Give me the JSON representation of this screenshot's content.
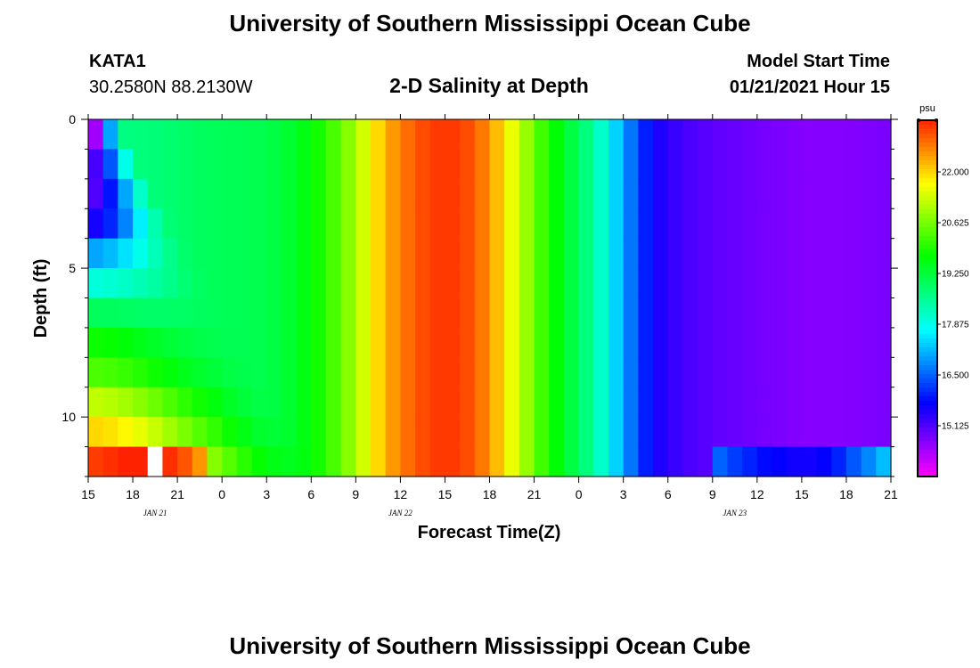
{
  "header": {
    "title": "University of Southern Mississippi Ocean Cube",
    "station": "KATA1",
    "coords": "30.2580N 88.2130W",
    "plot_title": "2-D Salinity at Depth",
    "model_label": "Model Start Time",
    "model_time": "01/21/2021 Hour 15",
    "footer_title": "University of Southern Mississippi Ocean Cube"
  },
  "chart_data": {
    "type": "heatmap",
    "title": "2-D Salinity at Depth",
    "xlabel": "Forecast Time(Z)",
    "ylabel": "Depth (ft)",
    "x_range_hours": [
      0,
      54
    ],
    "y_range_ft": [
      0,
      12
    ],
    "x_ticks": [
      "15",
      "18",
      "21",
      "0",
      "3",
      "6",
      "9",
      "12",
      "15",
      "18",
      "21",
      "0",
      "3",
      "6",
      "9",
      "12",
      "15",
      "18",
      "21"
    ],
    "date_labels": [
      {
        "text": "JAN 21",
        "at_hour": 4.5
      },
      {
        "text": "JAN 22",
        "at_hour": 21
      },
      {
        "text": "JAN 23",
        "at_hour": 43.5
      }
    ],
    "y_ticks": [
      "0",
      "5",
      "10"
    ],
    "y_tick_values": [
      0,
      5,
      10
    ],
    "colorbar": {
      "unit": "psu",
      "range": [
        13.75,
        23.4
      ],
      "ticks": [
        "22.000",
        "20.625",
        "19.250",
        "17.875",
        "16.500",
        "15.125"
      ],
      "tick_values": [
        22.0,
        20.625,
        19.25,
        17.875,
        16.5,
        15.125
      ]
    },
    "colors": {
      "background": "#ffffff",
      "frame": "#000000"
    },
    "depth_layers": 12,
    "column_step_hours": 1,
    "stable_profile_hours": [
      0,
      5,
      8,
      12,
      14,
      16,
      18,
      20,
      22,
      24,
      26,
      27.5,
      29,
      30.5,
      32,
      34,
      36,
      38,
      40,
      42,
      44,
      46,
      48,
      51,
      54
    ],
    "stable_profile_psu": [
      18.6,
      18.8,
      19.0,
      19.1,
      19.4,
      20.0,
      21.0,
      22.3,
      23.0,
      23.3,
      23.0,
      22.2,
      21.2,
      20.2,
      19.4,
      18.5,
      17.0,
      15.6,
      15.2,
      15.0,
      14.9,
      14.8,
      14.7,
      14.7,
      14.8
    ],
    "surface_start_psu": [
      14.0,
      15.0,
      15.0,
      15.5,
      17.0,
      18.0,
      19.0,
      19.8,
      20.3,
      21.2,
      22.0,
      23.1
    ],
    "bottom_early_psu": [
      23.2,
      23.3,
      23.4,
      23.4,
      23.4,
      23.3,
      23.0,
      22.5,
      22.0
    ],
    "bottom_late_psu": [
      16.5,
      16.2,
      16.0,
      15.8,
      15.7,
      15.6,
      15.6,
      15.7,
      16.0,
      16.4,
      16.8,
      17.2
    ],
    "mixing_depth_factor": 1.05,
    "missing_cells": [
      {
        "hour": 4,
        "layer": 11
      }
    ]
  }
}
